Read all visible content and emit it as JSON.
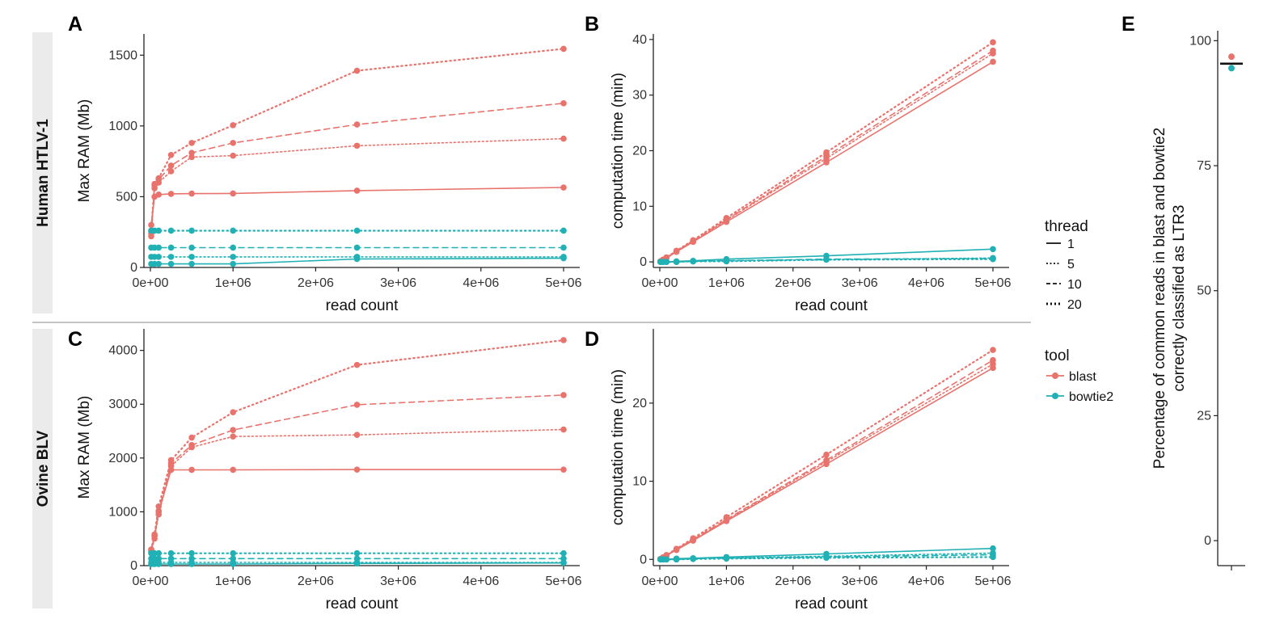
{
  "colors": {
    "blast": "#E8736D",
    "bowtie2": "#21B1B5",
    "axis": "#222222",
    "strip_bg": "#EBEBEB"
  },
  "rows": [
    {
      "id": "human",
      "strip_label": "Human HTLV-1"
    },
    {
      "id": "ovine",
      "strip_label": "Ovine BLV"
    }
  ],
  "legend": {
    "thread_title": "thread",
    "threads": [
      {
        "label": "1",
        "dash": "solid"
      },
      {
        "label": "5",
        "dash": "dotted"
      },
      {
        "label": "10",
        "dash": "dashed"
      },
      {
        "label": "20",
        "dash": "dotted-bold"
      }
    ],
    "tool_title": "tool",
    "tools": [
      {
        "label": "blast",
        "color": "#E8736D"
      },
      {
        "label": "bowtie2",
        "color": "#21B1B5"
      }
    ]
  },
  "chart_data": [
    {
      "panel": "A",
      "type": "line",
      "row": "human",
      "xlabel": "read count",
      "ylabel": "Max RAM (Mb)",
      "xlim": [
        0,
        5000000
      ],
      "ylim": [
        0,
        1650
      ],
      "xticks": [
        0,
        1000000,
        2000000,
        3000000,
        4000000,
        5000000
      ],
      "xtick_labels": [
        "0e+00",
        "1e+06",
        "2e+06",
        "3e+06",
        "4e+06",
        "5e+06"
      ],
      "yticks": [
        0,
        500,
        1000,
        1500
      ],
      "ytick_labels": [
        "0",
        "500",
        "1000",
        "1500"
      ],
      "x": [
        10000,
        50000,
        100000,
        250000,
        500000,
        1000000,
        2500000,
        5000000
      ],
      "series": [
        {
          "tool": "blast",
          "thread": "1",
          "values": [
            300,
            500,
            515,
            520,
            522,
            523,
            543,
            565
          ]
        },
        {
          "tool": "blast",
          "thread": "5",
          "values": [
            220,
            560,
            600,
            680,
            780,
            790,
            860,
            910
          ]
        },
        {
          "tool": "blast",
          "thread": "10",
          "values": [
            240,
            580,
            620,
            720,
            810,
            880,
            1010,
            1160
          ]
        },
        {
          "tool": "blast",
          "thread": "20",
          "values": [
            260,
            590,
            630,
            795,
            880,
            1005,
            1390,
            1545
          ]
        },
        {
          "tool": "bowtie2",
          "thread": "1",
          "values": [
            25,
            25,
            25,
            25,
            25,
            25,
            60,
            65
          ]
        },
        {
          "tool": "bowtie2",
          "thread": "5",
          "values": [
            75,
            75,
            75,
            75,
            75,
            75,
            75,
            75
          ]
        },
        {
          "tool": "bowtie2",
          "thread": "10",
          "values": [
            140,
            140,
            140,
            140,
            140,
            140,
            140,
            140
          ]
        },
        {
          "tool": "bowtie2",
          "thread": "20",
          "values": [
            260,
            260,
            260,
            260,
            260,
            260,
            260,
            260
          ]
        }
      ]
    },
    {
      "panel": "B",
      "type": "line",
      "row": "human",
      "xlabel": "read count",
      "ylabel": "computation time (min)",
      "xlim": [
        0,
        5000000
      ],
      "ylim": [
        -1,
        41
      ],
      "xticks": [
        0,
        1000000,
        2000000,
        3000000,
        4000000,
        5000000
      ],
      "xtick_labels": [
        "0e+00",
        "1e+06",
        "2e+06",
        "3e+06",
        "4e+06",
        "5e+06"
      ],
      "yticks": [
        0,
        10,
        20,
        30,
        40
      ],
      "ytick_labels": [
        "0",
        "10",
        "20",
        "30",
        "40"
      ],
      "x": [
        10000,
        50000,
        100000,
        250000,
        500000,
        1000000,
        2500000,
        5000000
      ],
      "series": [
        {
          "tool": "blast",
          "thread": "1",
          "values": [
            0.1,
            0.4,
            0.7,
            1.8,
            3.6,
            7.2,
            17.9,
            36.0
          ]
        },
        {
          "tool": "blast",
          "thread": "5",
          "values": [
            0.1,
            0.4,
            0.8,
            1.9,
            3.7,
            7.5,
            18.6,
            37.5
          ]
        },
        {
          "tool": "blast",
          "thread": "10",
          "values": [
            0.1,
            0.4,
            0.8,
            1.9,
            3.8,
            7.6,
            19.0,
            38.0
          ]
        },
        {
          "tool": "blast",
          "thread": "20",
          "values": [
            0.1,
            0.4,
            0.8,
            2.0,
            3.9,
            7.9,
            19.7,
            39.5
          ]
        },
        {
          "tool": "bowtie2",
          "thread": "1",
          "values": [
            0.0,
            0.0,
            0.0,
            0.1,
            0.2,
            0.5,
            1.1,
            2.3
          ]
        },
        {
          "tool": "bowtie2",
          "thread": "5",
          "values": [
            0.0,
            0.0,
            0.0,
            0.0,
            0.1,
            0.2,
            0.4,
            0.7
          ]
        },
        {
          "tool": "bowtie2",
          "thread": "10",
          "values": [
            0.0,
            0.0,
            0.0,
            0.0,
            0.1,
            0.2,
            0.5,
            0.6
          ]
        },
        {
          "tool": "bowtie2",
          "thread": "20",
          "values": [
            0.0,
            0.0,
            0.0,
            0.0,
            0.1,
            0.1,
            0.4,
            0.5
          ]
        }
      ]
    },
    {
      "panel": "C",
      "type": "line",
      "row": "ovine",
      "xlabel": "read count",
      "ylabel": "Max RAM (Mb)",
      "xlim": [
        0,
        5000000
      ],
      "ylim": [
        0,
        4400
      ],
      "xticks": [
        0,
        1000000,
        2000000,
        3000000,
        4000000,
        5000000
      ],
      "xtick_labels": [
        "0e+00",
        "1e+06",
        "2e+06",
        "3e+06",
        "4e+06",
        "5e+06"
      ],
      "yticks": [
        0,
        1000,
        2000,
        3000,
        4000
      ],
      "ytick_labels": [
        "0",
        "1000",
        "2000",
        "3000",
        "4000"
      ],
      "x": [
        10000,
        50000,
        100000,
        250000,
        500000,
        1000000,
        2500000,
        5000000
      ],
      "series": [
        {
          "tool": "blast",
          "thread": "1",
          "values": [
            300,
            550,
            1000,
            1780,
            1780,
            1780,
            1785,
            1785
          ]
        },
        {
          "tool": "blast",
          "thread": "5",
          "values": [
            250,
            500,
            950,
            1850,
            2200,
            2400,
            2430,
            2530
          ]
        },
        {
          "tool": "blast",
          "thread": "10",
          "values": [
            280,
            560,
            1020,
            1900,
            2240,
            2520,
            2990,
            3170
          ]
        },
        {
          "tool": "blast",
          "thread": "20",
          "values": [
            300,
            580,
            1100,
            1960,
            2380,
            2850,
            3730,
            4190
          ]
        },
        {
          "tool": "bowtie2",
          "thread": "1",
          "values": [
            30,
            30,
            30,
            30,
            30,
            30,
            40,
            50
          ]
        },
        {
          "tool": "bowtie2",
          "thread": "5",
          "values": [
            60,
            60,
            60,
            60,
            60,
            60,
            60,
            60
          ]
        },
        {
          "tool": "bowtie2",
          "thread": "10",
          "values": [
            130,
            130,
            130,
            130,
            130,
            130,
            130,
            130
          ]
        },
        {
          "tool": "bowtie2",
          "thread": "20",
          "values": [
            230,
            230,
            230,
            230,
            230,
            230,
            230,
            230
          ]
        }
      ]
    },
    {
      "panel": "D",
      "type": "line",
      "row": "ovine",
      "xlabel": "read count",
      "ylabel": "computation time (min)",
      "xlim": [
        0,
        5000000
      ],
      "ylim": [
        -0.8,
        29.5
      ],
      "xticks": [
        0,
        1000000,
        2000000,
        3000000,
        4000000,
        5000000
      ],
      "xtick_labels": [
        "0e+00",
        "1e+06",
        "2e+06",
        "3e+06",
        "4e+06",
        "5e+06"
      ],
      "yticks": [
        0,
        10,
        20
      ],
      "ytick_labels": [
        "0",
        "10",
        "20"
      ],
      "x": [
        10000,
        50000,
        100000,
        250000,
        500000,
        1000000,
        2500000,
        5000000
      ],
      "series": [
        {
          "tool": "blast",
          "thread": "1",
          "values": [
            0.05,
            0.25,
            0.5,
            1.2,
            2.4,
            4.9,
            12.2,
            24.5
          ]
        },
        {
          "tool": "blast",
          "thread": "5",
          "values": [
            0.05,
            0.25,
            0.5,
            1.25,
            2.5,
            5.0,
            12.5,
            25.0
          ]
        },
        {
          "tool": "blast",
          "thread": "10",
          "values": [
            0.05,
            0.25,
            0.5,
            1.3,
            2.55,
            5.1,
            12.7,
            25.5
          ]
        },
        {
          "tool": "blast",
          "thread": "20",
          "values": [
            0.05,
            0.25,
            0.55,
            1.35,
            2.7,
            5.4,
            13.4,
            26.8
          ]
        },
        {
          "tool": "bowtie2",
          "thread": "1",
          "values": [
            0.0,
            0.0,
            0.0,
            0.1,
            0.15,
            0.3,
            0.7,
            1.4
          ]
        },
        {
          "tool": "bowtie2",
          "thread": "5",
          "values": [
            0.0,
            0.0,
            0.0,
            0.0,
            0.1,
            0.2,
            0.4,
            0.8
          ]
        },
        {
          "tool": "bowtie2",
          "thread": "10",
          "values": [
            0.0,
            0.0,
            0.0,
            0.0,
            0.1,
            0.15,
            0.3,
            0.6
          ]
        },
        {
          "tool": "bowtie2",
          "thread": "20",
          "values": [
            0.0,
            0.0,
            0.0,
            0.0,
            0.05,
            0.1,
            0.2,
            0.3
          ]
        }
      ]
    },
    {
      "panel": "E",
      "type": "scatter",
      "ylabel": "Percentage of common reads in blast and bowtie2 correctly classified as LTR3",
      "ylabel_lines": [
        "Percentage of common reads in blast and bowtie2",
        "correctly classified as LTR3"
      ],
      "ylim": [
        -5,
        102
      ],
      "yticks": [
        0,
        25,
        50,
        75,
        100
      ],
      "ytick_labels": [
        "0",
        "25",
        "50",
        "75",
        "100"
      ],
      "points": [
        {
          "tool": "blast",
          "value": 96.8
        },
        {
          "tool": "bowtie2",
          "value": 94.5
        }
      ],
      "median": 95.4
    }
  ]
}
